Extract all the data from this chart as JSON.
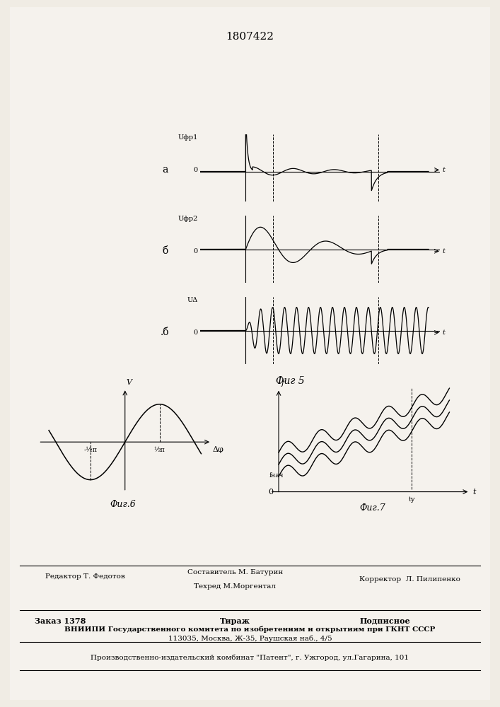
{
  "patent_number": "1807422",
  "fig5_label": "Фиг 5",
  "fig6_label": "Фиг.6",
  "fig7_label": "Фиг.7",
  "subplot_a_label": "а",
  "subplot_b_label": "б",
  "subplot_v_label": ".б",
  "ylabel_a": "Uфр1",
  "ylabel_b": "Uфр2",
  "ylabel_v": "UΔ",
  "xlabel_t": "t",
  "fig6_xlabel": "Δφ",
  "fig6_ylabel": "V",
  "fig7_ylabel": "f",
  "fig7_xlabel": "t",
  "fig7_fstart": "fнач",
  "fig7_tu": "tу",
  "fig6_xneg": "-½π",
  "fig6_xpos": "½π",
  "editor_line": "Редактор Т. Федотов",
  "compositor_line": "Составитель М. Батурин",
  "techred_line": "Техред М.Моргентал",
  "corrector_line": "Корректор  Л. Пилипенко",
  "order_line": "Заказ 1378",
  "tirazh_line": "Тираж",
  "podpisnoe_line": "Подписное",
  "vniiipi_line": "ВНИИПИ Государственного комитета по изобретениям и открытиям при ГКНТ СССР",
  "address_line": "113035, Москва, Ж-35, Раушская наб., 4/5",
  "production_line": "Производственно-издательский комбинат \"Патент\", г. Ужгород, ул.Гагарина, 101",
  "bg_color": "#f0ece4",
  "paper_color": "#f5f2ed"
}
